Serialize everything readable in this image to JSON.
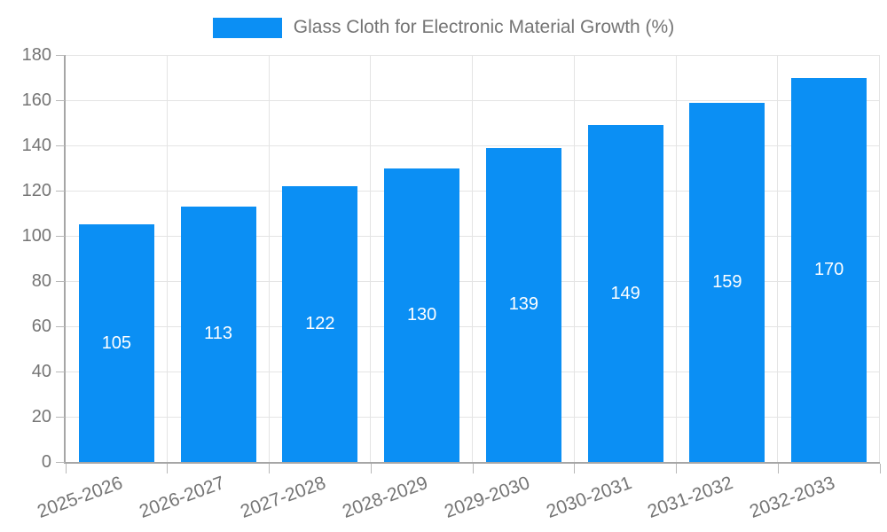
{
  "legend": {
    "label": "Glass Cloth for Electronic Material Growth (%)",
    "swatch_color": "#0b8ff4"
  },
  "chart_data": {
    "type": "bar",
    "title": "",
    "xlabel": "",
    "ylabel": "",
    "categories": [
      "2025-2026",
      "2026-2027",
      "2027-2028",
      "2028-2029",
      "2029-2030",
      "2030-2031",
      "2031-2032",
      "2032-2033"
    ],
    "series": [
      {
        "name": "Glass Cloth for Electronic Material Growth (%)",
        "values": [
          105,
          113,
          122,
          130,
          139,
          149,
          159,
          170
        ]
      }
    ],
    "value_labels_shown": true,
    "ylim": [
      0,
      180
    ],
    "ytick_step": 20,
    "grid": true,
    "legend_position": "top-center",
    "x_label_rotation_deg": -20,
    "colors": {
      "bar": "#0b8ff4",
      "value_label": "#ffffff",
      "grid": "#e4e4e4",
      "axis": "#a6a6a6",
      "tick": "#b8b8b8",
      "tick_label": "#757575"
    }
  }
}
